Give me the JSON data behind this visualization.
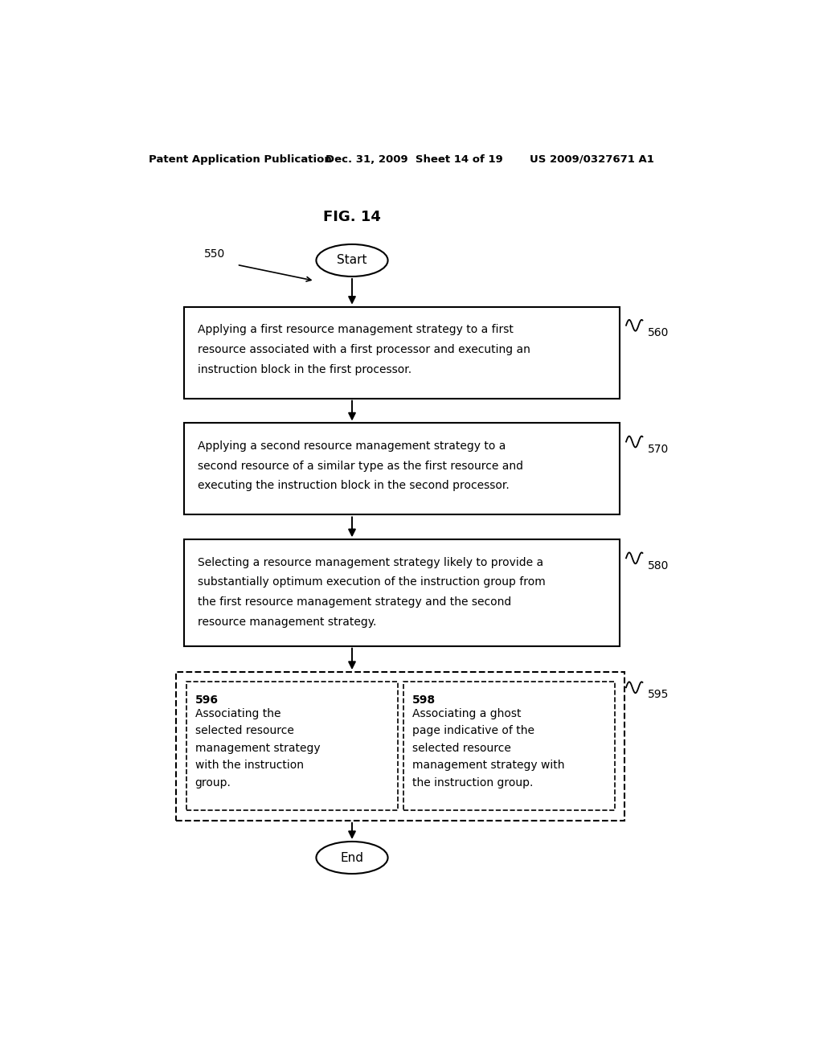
{
  "title": "FIG. 14",
  "header_left": "Patent Application Publication",
  "header_mid": "Dec. 31, 2009  Sheet 14 of 19",
  "header_right": "US 2009/0327671 A1",
  "bg_color": "#ffffff",
  "text_color": "#000000",
  "label_550": "550",
  "label_560": "560",
  "label_570": "570",
  "label_580": "580",
  "label_595": "595",
  "label_596": "596",
  "label_598": "598",
  "start_text": "Start",
  "end_text": "End",
  "box1_line1": "Applying a first resource management strategy to a first",
  "box1_line2": "resource associated with a first processor and executing an",
  "box1_line3": "instruction block in the first processor.",
  "box2_line1": "Applying a second resource management strategy to a",
  "box2_line2": "second resource of a similar type as the first resource and",
  "box2_line3": "executing the instruction block in the second processor.",
  "box3_line1": "Selecting a resource management strategy likely to provide a",
  "box3_line2": "substantially optimum execution of the instruction group from",
  "box3_line3": "the first resource management strategy and the second",
  "box3_line4": "resource management strategy.",
  "box4_line1": "Associating the",
  "box4_line2": "selected resource",
  "box4_line3": "management strategy",
  "box4_line4": "with the instruction",
  "box4_line5": "group.",
  "box5_line1": "Associating a ghost",
  "box5_line2": "page indicative of the",
  "box5_line3": "selected resource",
  "box5_line4": "management strategy with",
  "box5_line5": "the instruction group."
}
